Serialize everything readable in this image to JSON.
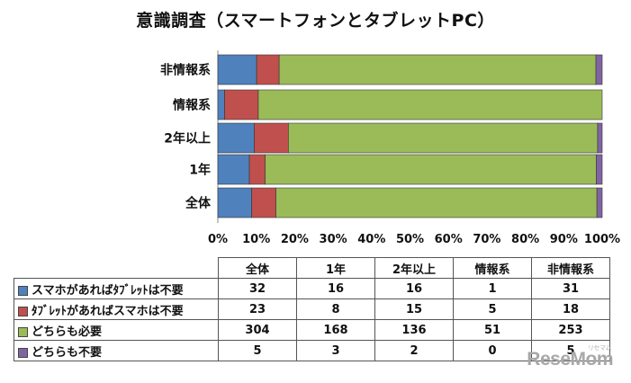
{
  "chart_data": {
    "type": "bar",
    "orientation": "horizontal",
    "stacked": true,
    "normalized": true,
    "title": "意識調査（スマートフォンとタブレットPC）",
    "categories": [
      "非情報系",
      "情報系",
      "2年以上",
      "1年",
      "全体"
    ],
    "series": [
      {
        "name": "スマホがあればﾀﾌﾞﾚｯﾄは不要",
        "color": "#4f81bd",
        "values": [
          31,
          1,
          16,
          16,
          32
        ]
      },
      {
        "name": "ﾀﾌﾞﾚｯﾄがあればスマホは不要",
        "color": "#c0504d",
        "values": [
          18,
          5,
          15,
          8,
          23
        ]
      },
      {
        "name": "どちらも必要",
        "color": "#9bbb59",
        "values": [
          253,
          51,
          136,
          168,
          304
        ]
      },
      {
        "name": "どちらも不要",
        "color": "#8064a2",
        "values": [
          5,
          0,
          2,
          3,
          5
        ]
      }
    ],
    "xlim": [
      0,
      100
    ],
    "xticks": [
      "0%",
      "10%",
      "20%",
      "30%",
      "40%",
      "50%",
      "60%",
      "70%",
      "80%",
      "90%",
      "100%"
    ],
    "xlabel": "",
    "ylabel": "",
    "grid": false
  },
  "table": {
    "columns": [
      "全体",
      "1年",
      "2年以上",
      "情報系",
      "非情報系"
    ],
    "rows": [
      {
        "label": "スマホがあればﾀﾌﾞﾚｯﾄは不要",
        "color": "#4f81bd",
        "values": [
          "32",
          "16",
          "16",
          "1",
          "31"
        ]
      },
      {
        "label": "ﾀﾌﾞﾚｯﾄがあればスマホは不要",
        "color": "#c0504d",
        "values": [
          "23",
          "8",
          "15",
          "5",
          "18"
        ]
      },
      {
        "label": "どちらも必要",
        "color": "#9bbb59",
        "values": [
          "304",
          "168",
          "136",
          "51",
          "253"
        ]
      },
      {
        "label": "どちらも不要",
        "color": "#8064a2",
        "values": [
          "5",
          "3",
          "2",
          "0",
          "5"
        ]
      }
    ]
  },
  "watermark": {
    "text": "ReseMom",
    "sub": "リセマム"
  }
}
